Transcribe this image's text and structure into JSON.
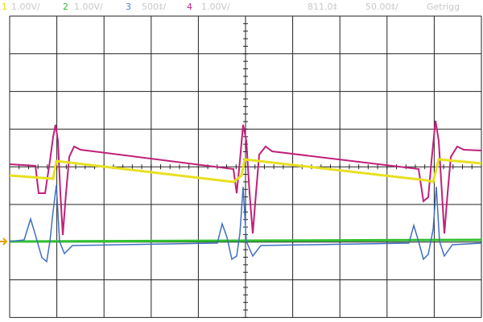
{
  "header": {
    "ch1": {
      "label": "1",
      "scale": "1.00V/"
    },
    "ch2": {
      "label": "2",
      "scale": "1.00V/"
    },
    "ch3": {
      "label": "3",
      "scale": "500‡/"
    },
    "ch4": {
      "label": "4",
      "scale": "1.00V/"
    },
    "delay": "811.0‡",
    "timebase": "50.00‡/",
    "status": "Getrigg"
  }
}
